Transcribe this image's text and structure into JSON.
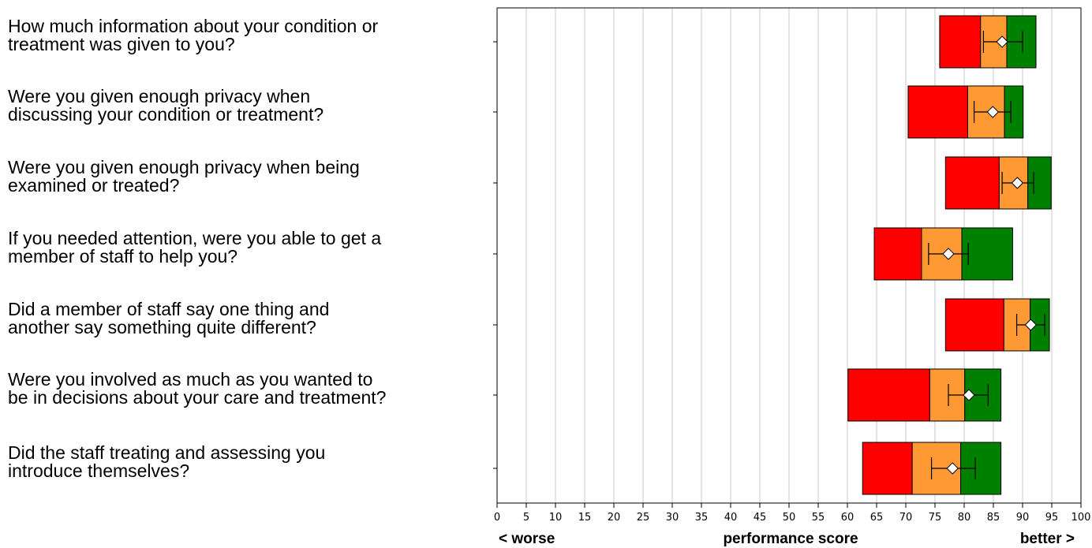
{
  "chart_data": {
    "type": "bar",
    "orientation": "horizontal",
    "title": "",
    "xlabel": "performance score",
    "worse_label": "< worse",
    "better_label": "better >",
    "xlim": [
      0,
      100
    ],
    "xticks": [
      0,
      5,
      10,
      15,
      20,
      25,
      30,
      35,
      40,
      45,
      50,
      55,
      60,
      65,
      70,
      75,
      80,
      85,
      90,
      95,
      100
    ],
    "grid": true,
    "colors": {
      "red": "#ff0000",
      "orange": "#ff9933",
      "green": "#008000",
      "grid": "#c8c8c8"
    },
    "categories": [
      {
        "lines": [
          "How much information about your condition or",
          "treatment was given to you?"
        ],
        "red": [
          75.8,
          82.8
        ],
        "orange": [
          82.8,
          87.3
        ],
        "green": [
          87.3,
          92.3
        ],
        "score": 86.5,
        "ci": [
          83.3,
          90.0
        ]
      },
      {
        "lines": [
          "Were you given enough privacy when",
          "discussing your condition or treatment?"
        ],
        "red": [
          70.4,
          80.6
        ],
        "orange": [
          80.6,
          86.9
        ],
        "green": [
          86.9,
          90.1
        ],
        "score": 84.9,
        "ci": [
          81.7,
          88.0
        ]
      },
      {
        "lines": [
          "Were you given enough privacy when being",
          "examined or treated?"
        ],
        "red": [
          76.8,
          86.0
        ],
        "orange": [
          86.0,
          90.9
        ],
        "green": [
          90.9,
          94.9
        ],
        "score": 89.1,
        "ci": [
          86.5,
          91.9
        ]
      },
      {
        "lines": [
          "If you needed attention, were you able to get a",
          "member of staff to help you?"
        ],
        "red": [
          64.6,
          72.7
        ],
        "orange": [
          72.7,
          79.6
        ],
        "green": [
          79.6,
          88.3
        ],
        "score": 77.3,
        "ci": [
          73.9,
          80.7
        ]
      },
      {
        "lines": [
          "Did a member of staff say one thing and",
          "another say something quite different?"
        ],
        "red": [
          76.8,
          86.8
        ],
        "orange": [
          86.8,
          91.3
        ],
        "green": [
          91.3,
          94.6
        ],
        "score": 91.4,
        "ci": [
          89.0,
          93.8
        ]
      },
      {
        "lines": [
          "Were you involved as much as you wanted to",
          "be in decisions about your care and treatment?"
        ],
        "red": [
          60.1,
          74.1
        ],
        "orange": [
          74.1,
          80.1
        ],
        "green": [
          80.1,
          86.3
        ],
        "score": 80.8,
        "ci": [
          77.3,
          84.1
        ]
      },
      {
        "lines": [
          "Did the staff treating and assessing you",
          "introduce themselves?"
        ],
        "red": [
          62.6,
          71.1
        ],
        "orange": [
          71.1,
          79.4
        ],
        "green": [
          79.4,
          86.3
        ],
        "score": 78.0,
        "ci": [
          74.4,
          81.9
        ]
      }
    ]
  }
}
